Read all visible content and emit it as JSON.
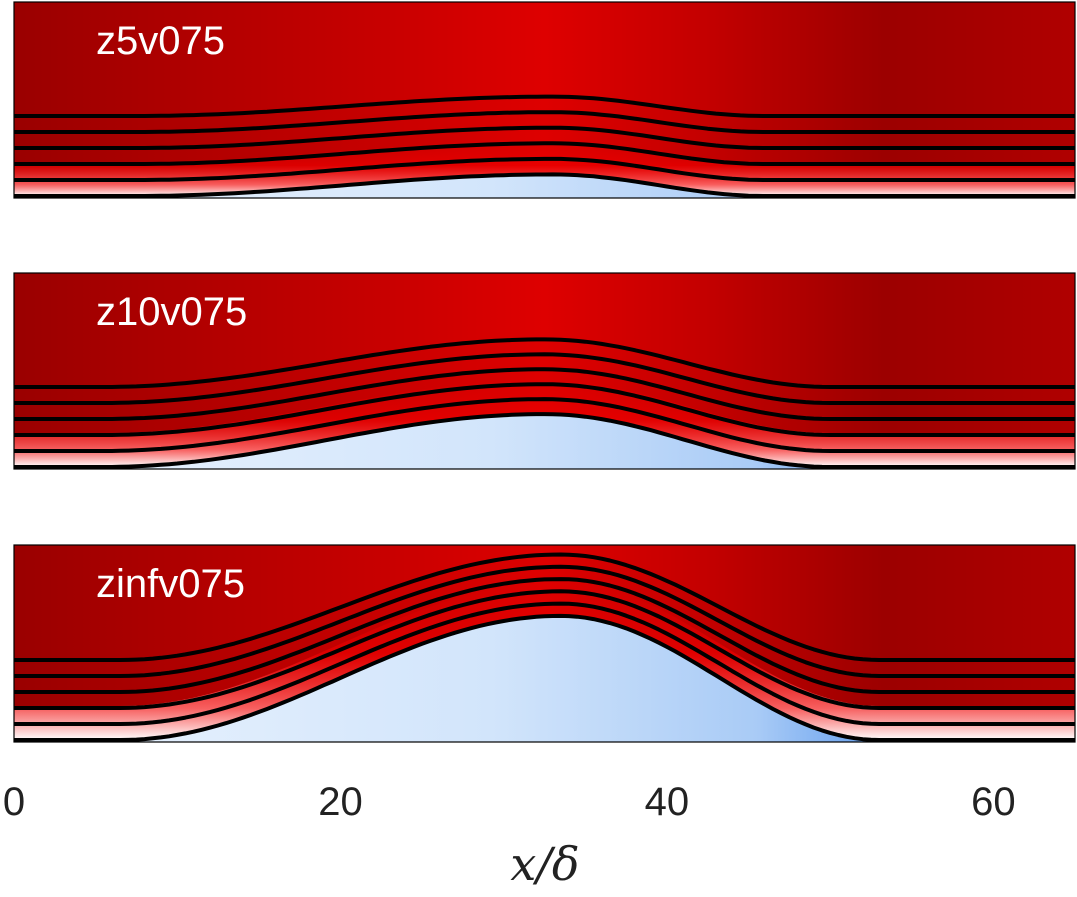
{
  "chart_data": {
    "type": "heatmap",
    "xlabel": "x/δ",
    "ylabel": "",
    "title": "",
    "xlim": [
      0,
      65
    ],
    "xticks": [
      0,
      20,
      40,
      60
    ],
    "colors": {
      "dark_red": "#9c0000",
      "bright_red": "#e00000",
      "light_red": "#ff5a5a",
      "white": "#ffffff",
      "light_blue": "#d6e8fc",
      "mid_blue": "#7fb3f2",
      "deep_blue": "#0a5fe0",
      "streamline": "#000000"
    },
    "panels": [
      {
        "label": "z5v075",
        "bubble": {
          "start": 7.5,
          "peak": 33,
          "end": 46,
          "height": 0.11,
          "shape": "low"
        },
        "streamline_count": 5
      },
      {
        "label": "z10v075",
        "bubble": {
          "start": 5.5,
          "peak": 32.5,
          "end": 50,
          "height": 0.27,
          "shape": "mid"
        },
        "streamline_count": 5
      },
      {
        "label": "zinfv075",
        "bubble": {
          "start": 6.5,
          "peak": 33.5,
          "end": 53,
          "height": 0.63,
          "shape": "tall"
        },
        "streamline_count": 5
      }
    ]
  }
}
